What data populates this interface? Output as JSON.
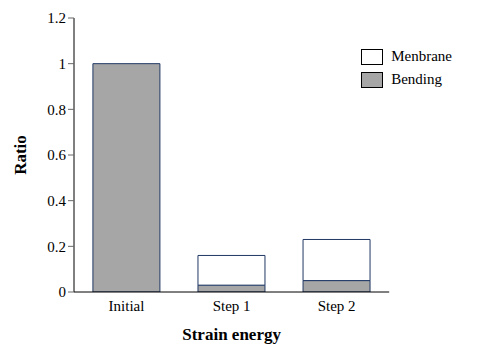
{
  "chart_data": {
    "type": "bar",
    "categories": [
      "Initial",
      "Step 1",
      "Step 2"
    ],
    "series": [
      {
        "name": "Menbrane",
        "color": "#ffffff",
        "values": [
          0,
          0.13,
          0.18
        ]
      },
      {
        "name": "Bending",
        "color": "#a6a6a6",
        "values": [
          1.0,
          0.03,
          0.05
        ]
      }
    ],
    "x_label": "Strain energy",
    "y_label": "Ratio",
    "ylim": [
      0,
      1.2
    ],
    "yticks": [
      0,
      0.2,
      0.4,
      0.6,
      0.8,
      1,
      1.2
    ],
    "stacked": true,
    "legend": "upper right",
    "grid": false
  }
}
